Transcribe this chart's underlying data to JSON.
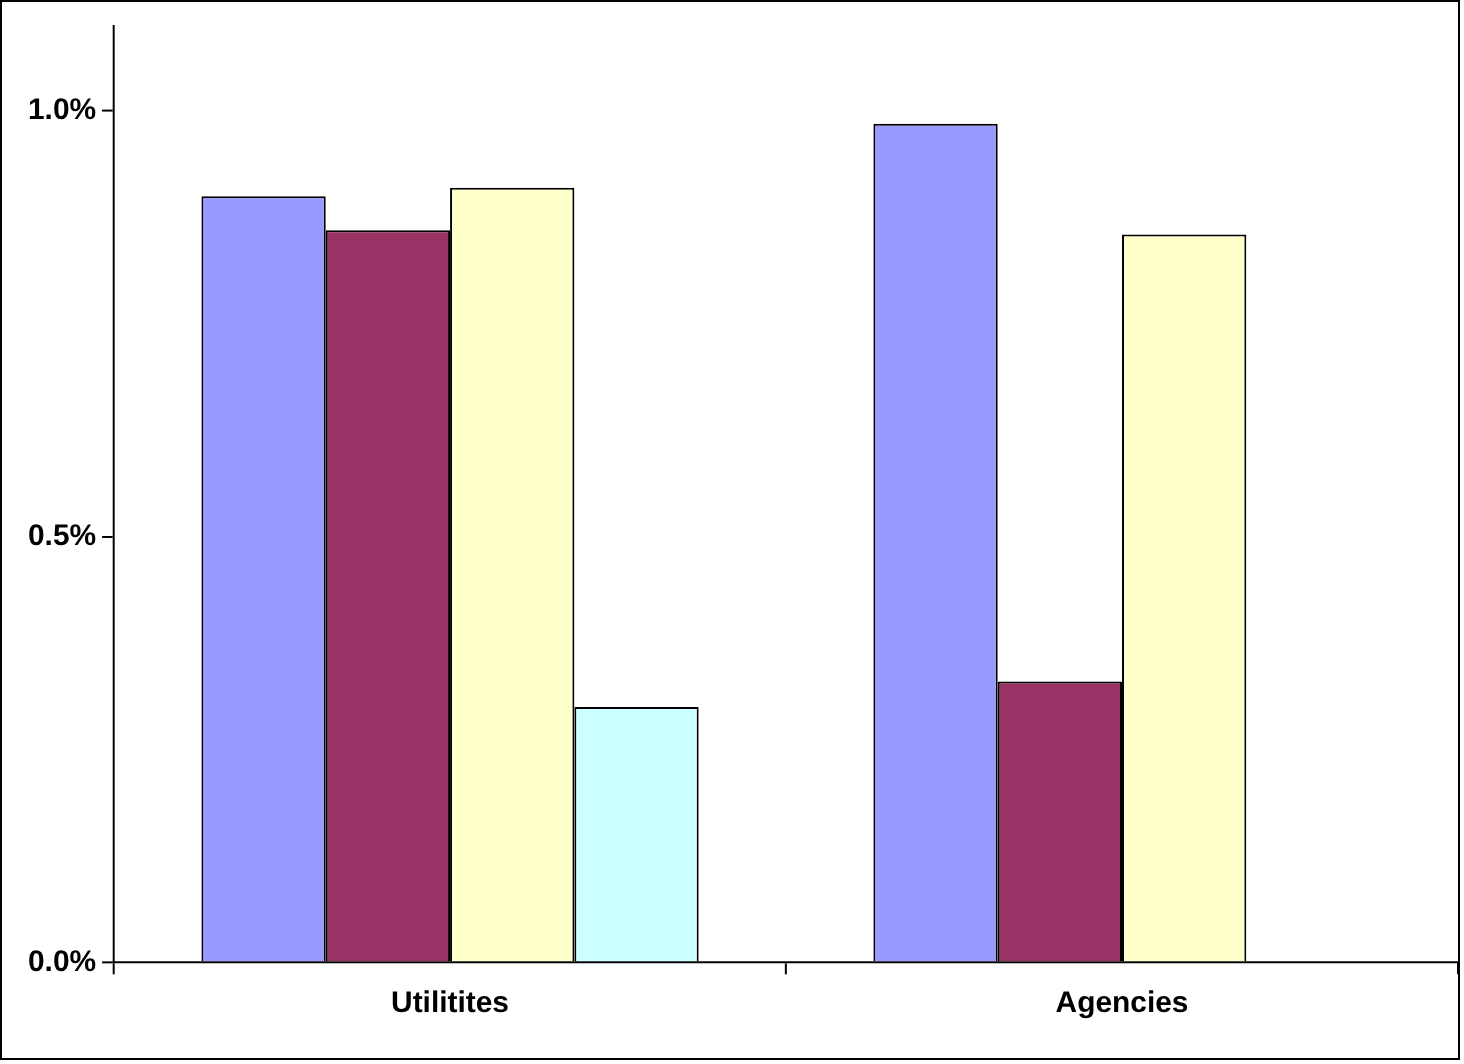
{
  "chart_data": {
    "type": "bar",
    "categories": [
      "Utilitites",
      "Agencies"
    ],
    "series": [
      {
        "color": "#9999ff",
        "values": [
          0.9,
          0.985
        ]
      },
      {
        "color": "#993366",
        "values": [
          0.86,
          0.33
        ]
      },
      {
        "color": "#ffffcc",
        "values": [
          0.91,
          0.855
        ]
      },
      {
        "color": "#ccffff",
        "values": [
          0.3,
          null
        ]
      }
    ],
    "ylim": [
      0,
      1.1
    ],
    "yticks": [
      {
        "value": 0,
        "label": "0.0%"
      },
      {
        "value": 0.5,
        "label": "0.5%"
      },
      {
        "value": 1,
        "label": "1.0%"
      }
    ],
    "grid": false,
    "legend": false
  }
}
